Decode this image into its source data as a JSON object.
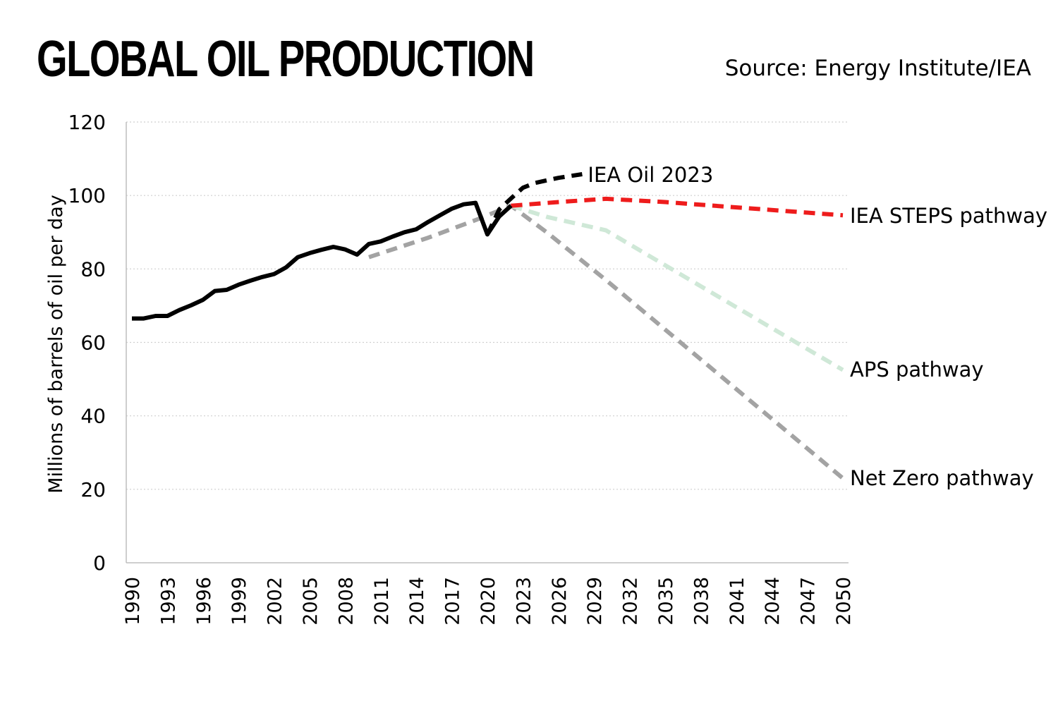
{
  "header": {
    "title": "GLOBAL OIL PRODUCTION",
    "source": "Source: Energy Institute/IEA"
  },
  "chart_data": {
    "type": "line",
    "ylabel": "Millions of barrels of oil per day",
    "xlabel": "",
    "xlim": [
      1990,
      2050
    ],
    "ylim": [
      0,
      120
    ],
    "y_ticks": [
      0,
      20,
      40,
      60,
      80,
      100,
      120
    ],
    "x_ticks": [
      1990,
      1993,
      1996,
      1999,
      2002,
      2005,
      2008,
      2011,
      2014,
      2017,
      2020,
      2023,
      2026,
      2029,
      2032,
      2035,
      2038,
      2041,
      2044,
      2047,
      2050
    ],
    "grid": "horizontal dotted",
    "series": [
      {
        "label": "",
        "color": "#000000",
        "style": "solid",
        "x": [
          1990,
          1991,
          1992,
          1993,
          1994,
          1995,
          1996,
          1997,
          1998,
          1999,
          2000,
          2001,
          2002,
          2003,
          2004,
          2005,
          2006,
          2007,
          2008,
          2009,
          2010,
          2011,
          2012,
          2013,
          2014,
          2015,
          2016,
          2017,
          2018,
          2019,
          2020,
          2021,
          2022
        ],
        "y": [
          66.5,
          66.5,
          67.2,
          67.2,
          68.8,
          70.1,
          71.6,
          74.0,
          74.3,
          75.7,
          76.8,
          77.8,
          78.6,
          80.4,
          83.2,
          84.3,
          85.2,
          86.0,
          85.3,
          83.9,
          86.8,
          87.5,
          88.8,
          90.0,
          90.8,
          92.8,
          94.6,
          96.4,
          97.6,
          98.0,
          89.4,
          94.3,
          97.2
        ]
      },
      {
        "label": "IEA Oil 2023",
        "color": "#000000",
        "style": "dashed",
        "x": [
          2020,
          2021,
          2022,
          2023,
          2024,
          2025,
          2026,
          2027,
          2028
        ],
        "y": [
          89.4,
          96.2,
          99.2,
          102.1,
          103.4,
          104.1,
          104.8,
          105.3,
          105.8
        ]
      },
      {
        "label": "IEA STEPS pathway",
        "color": "#ee1c1c",
        "style": "dashed",
        "x": [
          2022,
          2026,
          2030,
          2035,
          2040,
          2045,
          2050
        ],
        "y": [
          97.2,
          98.2,
          99.1,
          98.2,
          97.0,
          95.8,
          94.6
        ]
      },
      {
        "label": "APS pathway",
        "color": "#cfe8d7",
        "style": "dashed",
        "x": [
          2022,
          2025,
          2030,
          2035,
          2040,
          2045,
          2050
        ],
        "y": [
          97.2,
          94.2,
          90.5,
          81.0,
          71.5,
          62.0,
          52.5
        ]
      },
      {
        "label": "Net Zero pathway",
        "color": "#a3a3a3",
        "style": "dashed",
        "x": [
          2010,
          2015,
          2019,
          2022,
          2025,
          2030,
          2035,
          2040,
          2045,
          2050
        ],
        "y": [
          83.2,
          88.5,
          93.3,
          97.2,
          90.0,
          77.0,
          63.5,
          50.0,
          36.5,
          23.0
        ]
      }
    ],
    "annotations": [
      {
        "text": "IEA Oil 2023",
        "series": 1
      },
      {
        "text": "IEA STEPS pathway",
        "series": 2
      },
      {
        "text": "APS pathway",
        "series": 3
      },
      {
        "text": "Net Zero pathway",
        "series": 4
      }
    ]
  }
}
